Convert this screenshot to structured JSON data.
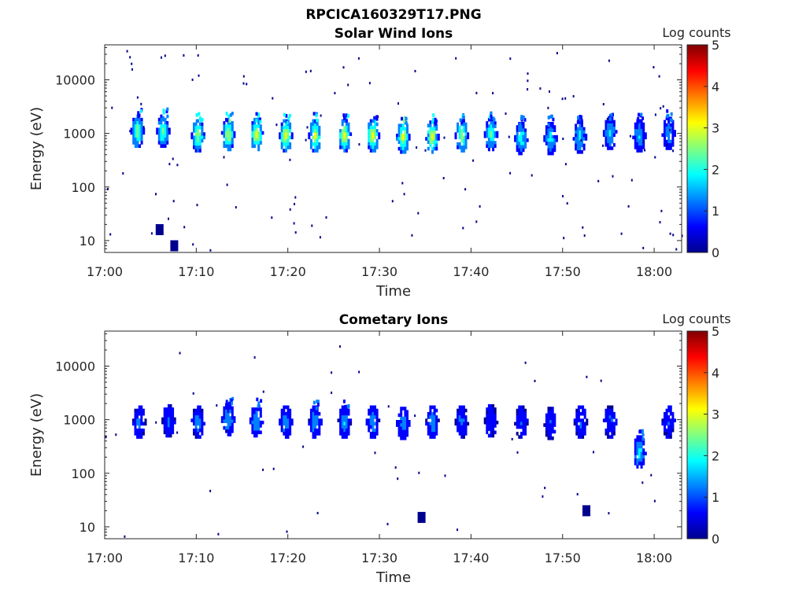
{
  "figure": {
    "filename_title": "RPCICA160329T17.PNG"
  },
  "colormap": [
    "#00008f",
    "#0000ff",
    "#0080ff",
    "#00ffff",
    "#80ff80",
    "#ffff00",
    "#ff8000",
    "#ff0000",
    "#800000"
  ],
  "chart_data": [
    {
      "type": "heatmap",
      "title": "Solar Wind Ions",
      "xlabel": "Time",
      "ylabel": "Energy (eV)",
      "x_scale": "time",
      "y_scale": "log",
      "xlim": [
        "17:00",
        "18:03"
      ],
      "ylim": [
        6,
        45000
      ],
      "x_ticks": [
        "17:00",
        "17:10",
        "17:20",
        "17:30",
        "17:40",
        "17:50",
        "18:00"
      ],
      "y_ticks": [
        10,
        100,
        1000,
        10000
      ],
      "y_tick_labels": [
        "10",
        "100",
        "1000",
        "10000"
      ],
      "colorbar": {
        "label": "Log counts",
        "range": [
          0,
          5
        ],
        "ticks": [
          "0",
          "1",
          "2",
          "3",
          "4",
          "5"
        ]
      },
      "clusters": [
        {
          "time": "17:03.6",
          "energy": 1100,
          "peak": 2.8
        },
        {
          "time": "17:06.4",
          "energy": 1100,
          "peak": 2.6
        },
        {
          "time": "17:10.2",
          "energy": 900,
          "peak": 3.0
        },
        {
          "time": "17:13.5",
          "energy": 950,
          "peak": 3.1
        },
        {
          "time": "17:16.6",
          "energy": 950,
          "peak": 3.2
        },
        {
          "time": "17:19.8",
          "energy": 900,
          "peak": 3.3
        },
        {
          "time": "17:23.0",
          "energy": 900,
          "peak": 3.2
        },
        {
          "time": "17:26.2",
          "energy": 900,
          "peak": 3.3
        },
        {
          "time": "17:29.3",
          "energy": 900,
          "peak": 3.3
        },
        {
          "time": "17:32.6",
          "energy": 850,
          "peak": 3.2
        },
        {
          "time": "17:35.8",
          "energy": 850,
          "peak": 3.2
        },
        {
          "time": "17:39.0",
          "energy": 900,
          "peak": 3.0
        },
        {
          "time": "17:42.2",
          "energy": 950,
          "peak": 2.4
        },
        {
          "time": "17:45.5",
          "energy": 800,
          "peak": 2.2
        },
        {
          "time": "17:48.7",
          "energy": 800,
          "peak": 2.1
        },
        {
          "time": "17:51.9",
          "energy": 850,
          "peak": 2.0
        },
        {
          "time": "17:55.2",
          "energy": 1000,
          "peak": 1.8
        },
        {
          "time": "17:58.4",
          "energy": 900,
          "peak": 1.7
        },
        {
          "time": "18:01.6",
          "energy": 1000,
          "peak": 1.6
        }
      ],
      "low_energy_blocks": [
        {
          "time": "17:06.0",
          "energy": 16
        },
        {
          "time": "17:07.6",
          "energy": 8
        }
      ]
    },
    {
      "type": "heatmap",
      "title": "Cometary Ions",
      "xlabel": "Time",
      "ylabel": "Energy (eV)",
      "x_scale": "time",
      "y_scale": "log",
      "xlim": [
        "17:00",
        "18:03"
      ],
      "ylim": [
        6,
        45000
      ],
      "x_ticks": [
        "17:00",
        "17:10",
        "17:20",
        "17:30",
        "17:40",
        "17:50",
        "18:00"
      ],
      "y_ticks": [
        10,
        100,
        1000,
        10000
      ],
      "y_tick_labels": [
        "10",
        "100",
        "1000",
        "10000"
      ],
      "colorbar": {
        "label": "Log counts",
        "range": [
          0,
          5
        ],
        "ticks": [
          "0",
          "1",
          "2",
          "3",
          "4",
          "5"
        ]
      },
      "clusters": [
        {
          "time": "17:03.8",
          "energy": 900,
          "peak": 1.2
        },
        {
          "time": "17:07.0",
          "energy": 950,
          "peak": 1.1
        },
        {
          "time": "17:10.2",
          "energy": 900,
          "peak": 1.4
        },
        {
          "time": "17:13.5",
          "energy": 1000,
          "peak": 1.6
        },
        {
          "time": "17:16.6",
          "energy": 950,
          "peak": 1.7
        },
        {
          "time": "17:19.8",
          "energy": 900,
          "peak": 1.5
        },
        {
          "time": "17:23.0",
          "energy": 900,
          "peak": 1.6
        },
        {
          "time": "17:26.2",
          "energy": 900,
          "peak": 1.6
        },
        {
          "time": "17:29.3",
          "energy": 900,
          "peak": 1.5
        },
        {
          "time": "17:32.6",
          "energy": 850,
          "peak": 1.4
        },
        {
          "time": "17:35.8",
          "energy": 900,
          "peak": 1.5
        },
        {
          "time": "17:39.0",
          "energy": 900,
          "peak": 1.2
        },
        {
          "time": "17:42.2",
          "energy": 950,
          "peak": 1.0
        },
        {
          "time": "17:45.5",
          "energy": 900,
          "peak": 1.0
        },
        {
          "time": "17:48.7",
          "energy": 850,
          "peak": 1.0
        },
        {
          "time": "17:52.0",
          "energy": 900,
          "peak": 1.1
        },
        {
          "time": "17:55.2",
          "energy": 900,
          "peak": 1.1
        },
        {
          "time": "17:58.4",
          "energy": 250,
          "peak": 1.9
        },
        {
          "time": "18:01.6",
          "energy": 900,
          "peak": 1.0
        }
      ],
      "low_energy_blocks": [
        {
          "time": "17:34.6",
          "energy": 15
        },
        {
          "time": "17:52.6",
          "energy": 20
        }
      ]
    }
  ]
}
